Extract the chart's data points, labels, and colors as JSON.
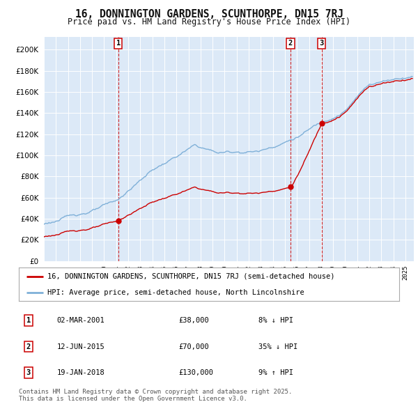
{
  "title": "16, DONNINGTON GARDENS, SCUNTHORPE, DN15 7RJ",
  "subtitle": "Price paid vs. HM Land Registry's House Price Index (HPI)",
  "legend_property": "16, DONNINGTON GARDENS, SCUNTHORPE, DN15 7RJ (semi-detached house)",
  "legend_hpi": "HPI: Average price, semi-detached house, North Lincolnshire",
  "line_color_property": "#cc0000",
  "line_color_hpi": "#7fb0d8",
  "plot_bg_color": "#dce9f7",
  "fig_bg_color": "#ffffff",
  "annotations": [
    {
      "num": 1,
      "date_str": "02-MAR-2001",
      "price": 38000,
      "price_str": "£38,000",
      "pct": "8%",
      "dir": "↓",
      "x_year": 2001.17
    },
    {
      "num": 2,
      "date_str": "12-JUN-2015",
      "price": 70000,
      "price_str": "£70,000",
      "pct": "35%",
      "dir": "↓",
      "x_year": 2015.46
    },
    {
      "num": 3,
      "date_str": "19-JAN-2018",
      "price": 130000,
      "price_str": "£130,000",
      "pct": "9%",
      "dir": "↑",
      "x_year": 2018.05
    }
  ],
  "footer": "Contains HM Land Registry data © Crown copyright and database right 2025.\nThis data is licensed under the Open Government Licence v3.0.",
  "yticks": [
    0,
    20000,
    40000,
    60000,
    80000,
    100000,
    120000,
    140000,
    160000,
    180000,
    200000
  ],
  "ytick_labels": [
    "£0",
    "£20K",
    "£40K",
    "£60K",
    "£80K",
    "£100K",
    "£120K",
    "£140K",
    "£160K",
    "£180K",
    "£200K"
  ],
  "ylim": [
    0,
    212000
  ],
  "xlim_start": 1995.0,
  "xlim_end": 2025.7
}
